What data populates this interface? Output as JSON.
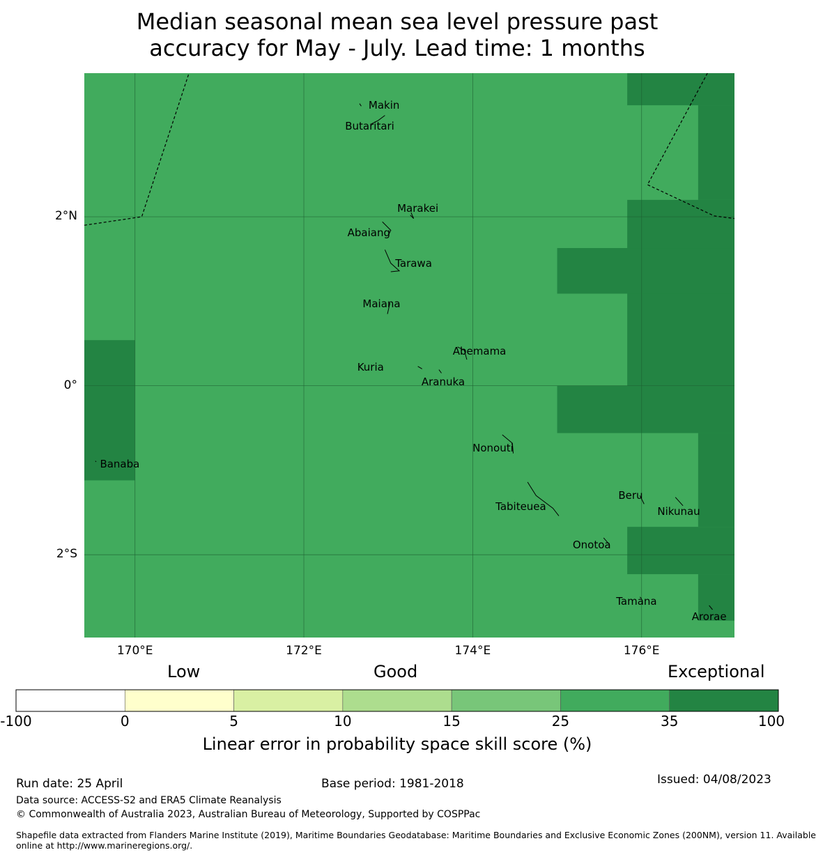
{
  "title_line1": "Median seasonal mean sea level pressure past",
  "title_line2": "accuracy for May - July. Lead time: 1 months",
  "colors": {
    "base": "#41ab5d",
    "exceptional": "#238443",
    "bins": [
      "#ffffff",
      "#ffffcc",
      "#d9f0a3",
      "#addd8e",
      "#78c679",
      "#41ab5d",
      "#238443"
    ]
  },
  "map": {
    "lon_range": [
      169.4,
      177.1
    ],
    "lat_range": [
      -2.98,
      3.7
    ],
    "lat_ticks": [
      {
        "value": 2,
        "label": "2°N"
      },
      {
        "value": 0,
        "label": "0°"
      },
      {
        "value": -2,
        "label": "2°S"
      }
    ],
    "lon_ticks": [
      {
        "value": 170,
        "label": "170°E"
      },
      {
        "value": 172,
        "label": "172°E"
      },
      {
        "value": 174,
        "label": "174°E"
      },
      {
        "value": 176,
        "label": "176°E"
      }
    ],
    "exceptional_cells": [
      {
        "lon": [
          175.83,
          177.1
        ],
        "lat": [
          3.32,
          3.7
        ]
      },
      {
        "lon": [
          176.67,
          177.1
        ],
        "lat": [
          2.2,
          3.32
        ]
      },
      {
        "lon": [
          175.83,
          177.1
        ],
        "lat": [
          1.63,
          2.2
        ]
      },
      {
        "lon": [
          175.0,
          177.1
        ],
        "lat": [
          1.09,
          1.63
        ]
      },
      {
        "lon": [
          175.83,
          177.1
        ],
        "lat": [
          0.0,
          1.09
        ]
      },
      {
        "lon": [
          175.0,
          177.1
        ],
        "lat": [
          -0.56,
          0.0
        ]
      },
      {
        "lon": [
          176.67,
          177.1
        ],
        "lat": [
          -1.67,
          -0.56
        ]
      },
      {
        "lon": [
          175.83,
          177.1
        ],
        "lat": [
          -2.23,
          -1.67
        ]
      },
      {
        "lon": [
          176.67,
          177.1
        ],
        "lat": [
          -2.78,
          -2.23
        ]
      },
      {
        "lon": [
          169.4,
          170.0
        ],
        "lat": [
          -1.12,
          0.54
        ]
      }
    ],
    "boundaries": [
      [
        [
          169.4,
          1.9
        ],
        [
          170.08,
          2.0
        ],
        [
          170.64,
          3.7
        ]
      ],
      [
        [
          176.78,
          3.7
        ],
        [
          176.07,
          2.38
        ],
        [
          176.86,
          2.01
        ],
        [
          177.1,
          1.98
        ]
      ]
    ],
    "islands": [
      {
        "name": "Makin",
        "lon": 172.95,
        "lat": 3.32
      },
      {
        "name": "Butaritari",
        "lon": 172.78,
        "lat": 3.07
      },
      {
        "name": "Marakei",
        "lon": 173.35,
        "lat": 2.1
      },
      {
        "name": "Abaiang",
        "lon": 172.77,
        "lat": 1.81
      },
      {
        "name": "Tarawa",
        "lon": 173.3,
        "lat": 1.45
      },
      {
        "name": "Maiana",
        "lon": 172.92,
        "lat": 0.97
      },
      {
        "name": "Abemama",
        "lon": 174.08,
        "lat": 0.41
      },
      {
        "name": "Kuria",
        "lon": 172.79,
        "lat": 0.22
      },
      {
        "name": "Aranuka",
        "lon": 173.65,
        "lat": 0.05
      },
      {
        "name": "Nonouti",
        "lon": 174.24,
        "lat": -0.74
      },
      {
        "name": "Banaba",
        "lon": 169.82,
        "lat": -0.93
      },
      {
        "name": "Beru",
        "lon": 175.87,
        "lat": -1.3
      },
      {
        "name": "Nikunau",
        "lon": 176.44,
        "lat": -1.49
      },
      {
        "name": "Tabiteuea",
        "lon": 174.57,
        "lat": -1.43
      },
      {
        "name": "Onotoa",
        "lon": 175.41,
        "lat": -1.88
      },
      {
        "name": "Tamana",
        "lon": 175.94,
        "lat": -2.55
      },
      {
        "name": "Arorae",
        "lon": 176.8,
        "lat": -2.73
      }
    ]
  },
  "colorbar": {
    "category_labels": [
      "Low",
      "Good",
      "Exceptional"
    ],
    "ticks": [
      "-100",
      "0",
      "5",
      "10",
      "15",
      "25",
      "35",
      "100"
    ],
    "title": "Linear error in probability space skill score (%)"
  },
  "footer": {
    "run_date": "Run date: 25 April",
    "base_period": "Base period: 1981-2018",
    "issued": "Issued: 04/08/2023",
    "data_source": "Data source: ACCESS-S2 and ERA5 Climate Reanalysis",
    "copyright": "© Commonwealth of Australia 2023, Australian Bureau of Meteorology, Supported by COSPPac",
    "shapefile_line1": "Shapefile data extracted from Flanders Marine Institute (2019), Maritime Boundaries Geodatabase: Maritime Boundaries and Exclusive Economic Zones (200NM), version 11. Available",
    "shapefile_line2": "online at http://www.marineregions.org/."
  }
}
